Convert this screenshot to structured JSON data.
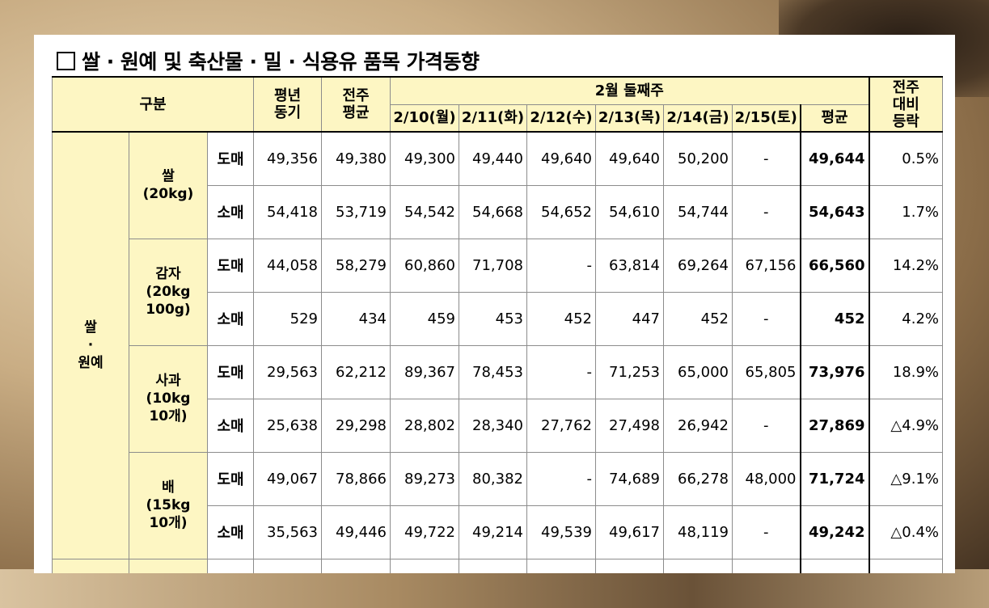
{
  "title": "쌀 · 원예 및 축산물 · 밀 · 식용유 품목 가격동향",
  "header": {
    "category": "구분",
    "prev_year": [
      "평년",
      "동기"
    ],
    "prev_week": [
      "전주",
      "평균"
    ],
    "week_label": "2월 둘째주",
    "days": [
      "2/10(월)",
      "2/11(화)",
      "2/12(수)",
      "2/13(목)",
      "2/14(금)",
      "2/15(토)"
    ],
    "avg": "평균",
    "change": [
      "전주",
      "대비",
      "등락"
    ]
  },
  "group": {
    "label": [
      "쌀",
      "·",
      "원예"
    ]
  },
  "items": [
    {
      "name": [
        "쌀",
        "(20kg)"
      ],
      "rows": [
        {
          "type": "도매",
          "prev_year": "49,356",
          "prev_week": "49,380",
          "days": [
            "49,300",
            "49,440",
            "49,640",
            "49,640",
            "50,200",
            "-"
          ],
          "avg": "49,644",
          "change": "0.5%"
        },
        {
          "type": "소매",
          "prev_year": "54,418",
          "prev_week": "53,719",
          "days": [
            "54,542",
            "54,668",
            "54,652",
            "54,610",
            "54,744",
            "-"
          ],
          "avg": "54,643",
          "change": "1.7%"
        }
      ]
    },
    {
      "name": [
        "감자",
        "(20kg",
        "100g)"
      ],
      "rows": [
        {
          "type": "도매",
          "prev_year": "44,058",
          "prev_week": "58,279",
          "days": [
            "60,860",
            "71,708",
            "-",
            "63,814",
            "69,264",
            "67,156"
          ],
          "avg": "66,560",
          "change": "14.2%"
        },
        {
          "type": "소매",
          "prev_year": "529",
          "prev_week": "434",
          "days": [
            "459",
            "453",
            "452",
            "447",
            "452",
            "-"
          ],
          "avg": "452",
          "change": "4.2%"
        }
      ]
    },
    {
      "name": [
        "사과",
        "(10kg",
        "10개)"
      ],
      "rows": [
        {
          "type": "도매",
          "prev_year": "29,563",
          "prev_week": "62,212",
          "days": [
            "89,367",
            "78,453",
            "-",
            "71,253",
            "65,000",
            "65,805"
          ],
          "avg": "73,976",
          "change": "18.9%"
        },
        {
          "type": "소매",
          "prev_year": "25,638",
          "prev_week": "29,298",
          "days": [
            "28,802",
            "28,340",
            "27,762",
            "27,498",
            "26,942",
            "-"
          ],
          "avg": "27,869",
          "change": "△4.9%"
        }
      ]
    },
    {
      "name": [
        "배",
        "(15kg",
        "10개)"
      ],
      "rows": [
        {
          "type": "도매",
          "prev_year": "49,067",
          "prev_week": "78,866",
          "days": [
            "89,273",
            "80,382",
            "-",
            "74,689",
            "66,278",
            "48,000"
          ],
          "avg": "71,724",
          "change": "△9.1%"
        },
        {
          "type": "소매",
          "prev_year": "35,563",
          "prev_week": "49,446",
          "days": [
            "49,722",
            "49,214",
            "49,539",
            "49,617",
            "48,119",
            "-"
          ],
          "avg": "49,242",
          "change": "△0.4%"
        }
      ]
    }
  ]
}
